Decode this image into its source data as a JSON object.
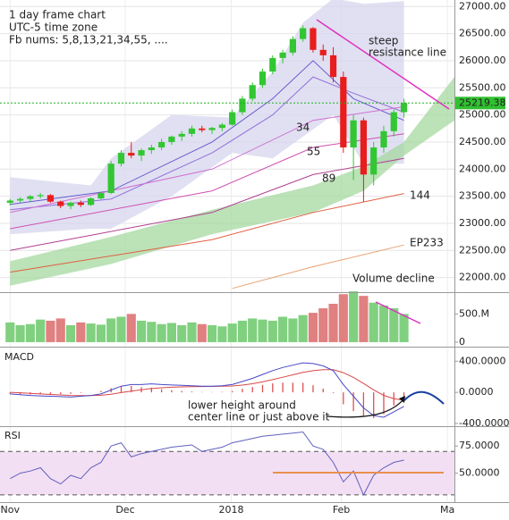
{
  "chart_data": [
    {
      "type": "candlestick",
      "annotations": [
        "1 day frame chart",
        "UTC-5 time zone",
        "Fb nums: 5,8,13,21,34,55, ....",
        "steep",
        "resistance line",
        "34",
        "55",
        "89",
        "144",
        "EP233",
        "Volume decline"
      ],
      "x": [
        0,
        1,
        2,
        3,
        4,
        5,
        6,
        7,
        8,
        9,
        10,
        11,
        12,
        13,
        14,
        15,
        16,
        17,
        18,
        19,
        20,
        21,
        22,
        23,
        24,
        25,
        26,
        27,
        28,
        29,
        30,
        31,
        32,
        33,
        34,
        35,
        36,
        37,
        38,
        39
      ],
      "open": [
        23380,
        23420,
        23450,
        23500,
        23520,
        23400,
        23320,
        23380,
        23340,
        23460,
        23560,
        24100,
        24300,
        24250,
        24350,
        24400,
        24500,
        24600,
        24650,
        24750,
        24720,
        24760,
        24820,
        25050,
        25300,
        25550,
        25800,
        26050,
        26150,
        26400,
        26600,
        26200,
        26100,
        25700,
        24400,
        24900,
        23900,
        24400,
        24700,
        25050
      ],
      "high": [
        23450,
        23480,
        23520,
        23560,
        23540,
        23420,
        23400,
        23420,
        23480,
        23580,
        24150,
        24350,
        24500,
        24380,
        24450,
        24560,
        24620,
        24700,
        24800,
        24800,
        24780,
        24850,
        25100,
        25350,
        25600,
        25850,
        26100,
        26200,
        26450,
        26650,
        26620,
        26300,
        26250,
        25800,
        25000,
        24950,
        24500,
        24800,
        25100,
        25300
      ],
      "low": [
        23330,
        23380,
        23400,
        23460,
        23380,
        23280,
        23260,
        23300,
        23320,
        23440,
        23540,
        24050,
        24200,
        24150,
        24280,
        24350,
        24450,
        24520,
        24600,
        24680,
        24650,
        24700,
        24800,
        25000,
        25250,
        25500,
        25750,
        25950,
        26100,
        26350,
        26150,
        26000,
        25600,
        24300,
        23800,
        23400,
        23700,
        24300,
        24600,
        24950
      ],
      "close": [
        23420,
        23450,
        23500,
        23520,
        23400,
        23320,
        23380,
        23340,
        23460,
        23560,
        24100,
        24300,
        24250,
        24350,
        24400,
        24500,
        24600,
        24650,
        24750,
        24720,
        24760,
        24820,
        25050,
        25300,
        25550,
        25800,
        26050,
        26150,
        26400,
        26600,
        26200,
        26100,
        25700,
        24400,
        24900,
        23900,
        24400,
        24700,
        25050,
        25219.38
      ],
      "up_color": "#33c633",
      "down_color": "#e81d1d",
      "last_price": {
        "value": 25219.38,
        "label": "25219.38"
      },
      "bands": [
        {
          "color": "#d6d6ee",
          "x": [
            0,
            8,
            10,
            16,
            22,
            26,
            29,
            32,
            35,
            39
          ],
          "upper": [
            23850,
            23700,
            24200,
            25000,
            24950,
            25800,
            26700,
            27150,
            27050,
            27100
          ],
          "lower": [
            22800,
            22900,
            22900,
            23500,
            24300,
            24200,
            24600,
            25000,
            24100,
            24100
          ]
        },
        {
          "color": "#a6d8a0",
          "x": [
            0,
            10,
            20,
            30,
            35,
            39,
            44
          ],
          "upper": [
            22300,
            22750,
            23250,
            23700,
            24050,
            24500,
            25700
          ],
          "lower": [
            21850,
            22250,
            22800,
            23200,
            23600,
            24250,
            24900
          ]
        }
      ],
      "lines": [
        {
          "color": "#6a5acd",
          "x": [
            0,
            10,
            20,
            26,
            30,
            34,
            39
          ],
          "values": [
            23350,
            23600,
            24500,
            25300,
            26000,
            25300,
            24900
          ]
        },
        {
          "color": "#9370db",
          "x": [
            0,
            10,
            20,
            26,
            30,
            34,
            39
          ],
          "values": [
            23250,
            23450,
            24300,
            25000,
            25700,
            25400,
            25050
          ]
        },
        {
          "color": "#d070d0",
          "x": [
            0,
            20,
            30,
            39
          ],
          "values": [
            23200,
            24000,
            24900,
            25150
          ]
        },
        {
          "color": "#d050b0",
          "x": [
            0,
            20,
            30,
            39
          ],
          "values": [
            22900,
            23600,
            24400,
            24650
          ]
        },
        {
          "color": "#b04090",
          "x": [
            0,
            20,
            30,
            39
          ],
          "values": [
            22500,
            23200,
            23900,
            24200
          ]
        },
        {
          "color": "#e06040",
          "x": [
            0,
            20,
            30,
            39
          ],
          "values": [
            22100,
            22700,
            23200,
            23550
          ]
        },
        {
          "color": "#e8a070",
          "x": [
            22,
            30,
            39
          ],
          "values": [
            21800,
            22200,
            22600
          ]
        }
      ],
      "ylim": [
        21730,
        27120
      ],
      "yticks": [
        {
          "value": 22000,
          "label": "22000.00"
        },
        {
          "value": 22500,
          "label": "22500.00"
        },
        {
          "value": 23000,
          "label": "23000.00"
        },
        {
          "value": 23500,
          "label": "23500.00"
        },
        {
          "value": 24000,
          "label": "24000.00"
        },
        {
          "value": 24500,
          "label": "24500.00"
        },
        {
          "value": 25000,
          "label": "25000.00"
        },
        {
          "value": 25500,
          "label": "25500.00"
        },
        {
          "value": 26000,
          "label": "26000.00"
        },
        {
          "value": 26500,
          "label": "26500.00"
        },
        {
          "value": 27000,
          "label": "27000.00"
        }
      ],
      "grid": true
    },
    {
      "type": "volume",
      "values": [
        350,
        300,
        320,
        400,
        380,
        420,
        300,
        350,
        330,
        310,
        420,
        450,
        500,
        380,
        360,
        320,
        340,
        300,
        350,
        320,
        300,
        280,
        330,
        380,
        420,
        400,
        380,
        450,
        420,
        480,
        520,
        600,
        680,
        850,
        900,
        820,
        700,
        650,
        600,
        500
      ],
      "up_color": "#80d080",
      "down_color": "#e08080",
      "ylim": [
        -80,
        870
      ],
      "yticks": [
        0,
        {
          "value": 500,
          "label": "500.M"
        }
      ]
    },
    {
      "type": "macd",
      "title": "MACD",
      "annotations": [
        "lower height around",
        "center line or just above it"
      ],
      "macd": [
        -20,
        -30,
        -40,
        -45,
        -50,
        -55,
        -60,
        -50,
        -40,
        -20,
        30,
        80,
        100,
        100,
        110,
        100,
        95,
        90,
        85,
        80,
        80,
        85,
        100,
        140,
        180,
        230,
        280,
        320,
        350,
        380,
        370,
        340,
        280,
        100,
        -50,
        -200,
        -300,
        -320,
        -250,
        -180
      ],
      "signal": [
        0,
        -5,
        -12,
        -20,
        -27,
        -33,
        -40,
        -42,
        -42,
        -38,
        -24,
        -3,
        17,
        34,
        49,
        59,
        66,
        71,
        74,
        75,
        76,
        78,
        82,
        94,
        111,
        135,
        164,
        195,
        226,
        257,
        279,
        291,
        291,
        253,
        192,
        114,
        31,
        -39,
        -81,
        -101
      ],
      "histogram": [
        -20,
        -25,
        -28,
        -25,
        -23,
        -22,
        -20,
        -8,
        2,
        18,
        54,
        83,
        83,
        66,
        61,
        41,
        29,
        19,
        11,
        5,
        4,
        7,
        18,
        46,
        69,
        95,
        116,
        125,
        124,
        123,
        91,
        49,
        -11,
        -153,
        -242,
        -314,
        -331,
        -281,
        -169,
        -79
      ],
      "macd_color": "#4848c8",
      "signal_color": "#d84848",
      "histogram_color": "#e05050",
      "ylim": [
        -435,
        576
      ],
      "yticks": [
        {
          "value": -400,
          "label": "-400.0000"
        },
        {
          "value": 0,
          "label": "0.0000"
        },
        {
          "value": 400,
          "label": "400.0000"
        }
      ]
    },
    {
      "type": "rsi",
      "title": "RSI",
      "values": [
        45,
        50,
        52,
        55,
        45,
        40,
        48,
        45,
        55,
        60,
        75,
        78,
        65,
        68,
        70,
        72,
        74,
        75,
        76,
        70,
        72,
        74,
        78,
        80,
        82,
        84,
        85,
        86,
        87,
        88,
        75,
        72,
        60,
        42,
        52,
        30,
        48,
        55,
        60,
        62
      ],
      "color": "#6060c0",
      "guides": [
        30,
        70
      ],
      "guide_fill": "#f3dff3",
      "ylim": [
        23.3,
        92.5
      ],
      "yticks": [
        {
          "value": 50,
          "label": "50.0000"
        },
        {
          "value": 75,
          "label": "75.0000"
        }
      ],
      "xlim": [
        -1,
        44
      ],
      "xticks": [
        {
          "value": 0,
          "label": "Nov"
        },
        {
          "value": 11.4,
          "label": "Dec"
        },
        {
          "value": 21.9,
          "label": "2018"
        },
        {
          "value": 32.8,
          "label": "Feb"
        },
        {
          "value": 43.3,
          "label": "Ma"
        }
      ]
    }
  ]
}
